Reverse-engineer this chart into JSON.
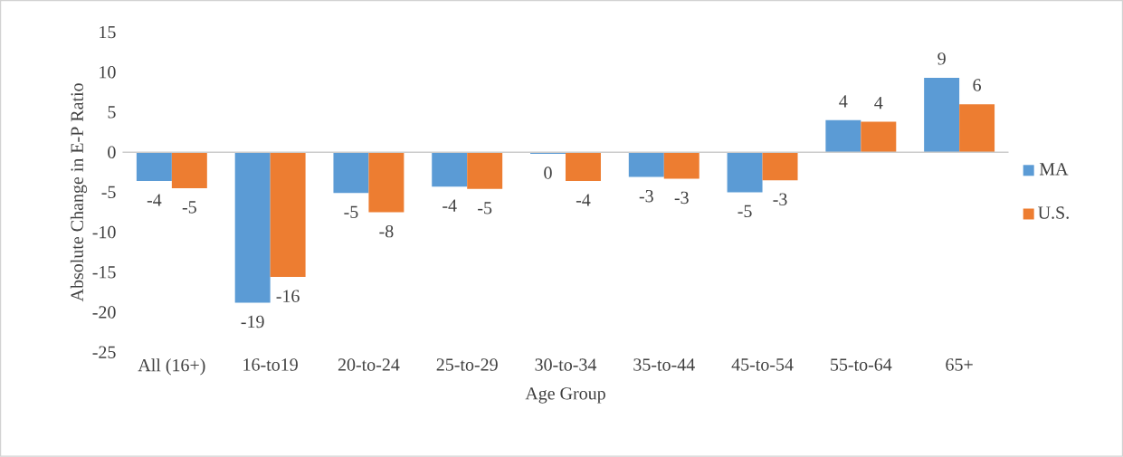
{
  "chart_data": {
    "type": "bar",
    "xlabel": "Age Group",
    "ylabel": "Absolute Change in E-P Ratio",
    "categories": [
      "All (16+)",
      "16-to19",
      "20-to-24",
      "25-to-29",
      "30-to-34",
      "35-to-44",
      "45-to-54",
      "55-to-64",
      "65+"
    ],
    "series": [
      {
        "name": "MA",
        "color": "#5b9bd5",
        "values": [
          -3.6,
          -18.8,
          -5.1,
          -4.3,
          -0.2,
          -3.1,
          -5.0,
          4.0,
          9.3
        ],
        "value_labels": [
          "-4",
          "-19",
          "-5",
          "-4",
          "0",
          "-3",
          "-5",
          "4",
          "9"
        ]
      },
      {
        "name": "U.S.",
        "color": "#ed7d31",
        "values": [
          -4.5,
          -15.6,
          -7.5,
          -4.6,
          -3.6,
          -3.3,
          -3.5,
          3.8,
          6.0
        ],
        "value_labels": [
          "-5",
          "-16",
          "-8",
          "-5",
          "-4",
          "-3",
          "-3",
          "4",
          "6"
        ]
      }
    ],
    "ylim": [
      -25,
      15
    ],
    "yticks": [
      -25,
      -20,
      -15,
      -10,
      -5,
      0,
      5,
      10,
      15
    ],
    "legend": "right"
  }
}
